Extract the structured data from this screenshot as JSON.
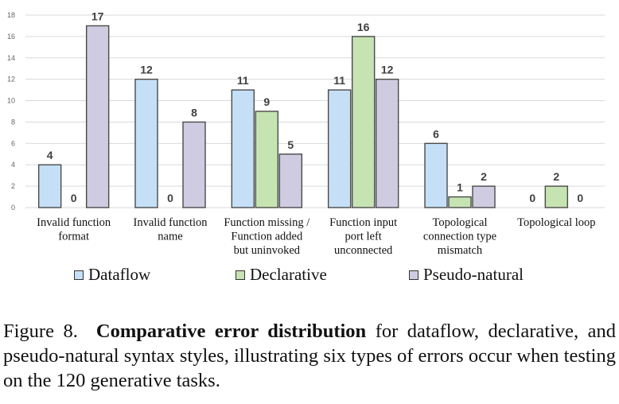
{
  "chart_data": {
    "type": "bar",
    "categories": [
      [
        "Invalid function",
        "format"
      ],
      [
        "Invalid function",
        "name"
      ],
      [
        "Function missing /",
        "Function added",
        "but uninvoked"
      ],
      [
        "Function input",
        "port left",
        "unconnected"
      ],
      [
        "Topological",
        "connection type",
        "mismatch"
      ],
      [
        "Topological loop"
      ]
    ],
    "series": [
      {
        "name": "Dataflow",
        "values": [
          4,
          12,
          11,
          11,
          6,
          0
        ],
        "color": "#c5e0f6"
      },
      {
        "name": "Declarative",
        "values": [
          0,
          0,
          9,
          16,
          1,
          2
        ],
        "color": "#c6e3b2"
      },
      {
        "name": "Pseudo-natural",
        "values": [
          17,
          8,
          5,
          12,
          2,
          0
        ],
        "color": "#cfcbe1"
      }
    ],
    "ylim": [
      0,
      18
    ],
    "yticks": [
      0,
      2,
      4,
      6,
      8,
      10,
      12,
      14,
      16,
      18
    ],
    "grid": true,
    "legend": "bottom",
    "border_color": "#4a4a4a"
  },
  "caption": {
    "prefix": "Figure 8.",
    "bold": "Comparative error distribution",
    "rest": "for dataflow, declarative, and pseudo-natural syntax styles, illustrating six types of errors occur when testing on the 120 generative tasks."
  }
}
